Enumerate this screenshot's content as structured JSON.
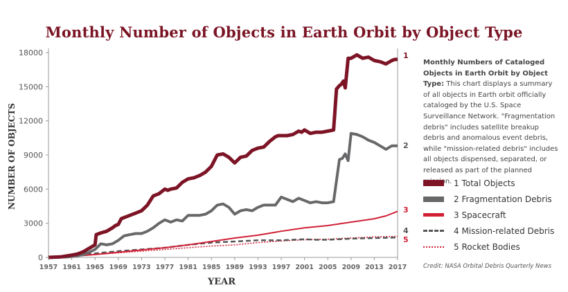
{
  "chart_data": {
    "type": "line",
    "title": "Monthly Number of Objects in Earth Orbit by Object Type",
    "xlabel": "YEAR",
    "ylabel": "NUMBER OF OBJECTS",
    "xlim": [
      1957,
      2017
    ],
    "ylim": [
      0,
      18000
    ],
    "x_ticks": [
      "1957",
      "1961",
      "1965",
      "1969",
      "1973",
      "1977",
      "1981",
      "1985",
      "1989",
      "1993",
      "1997",
      "2001",
      "2005",
      "2009",
      "2013",
      "2017"
    ],
    "y_ticks": [
      "0",
      "3000",
      "6000",
      "9000",
      "12000",
      "15000",
      "18000"
    ],
    "grid": false,
    "series": [
      {
        "name": "1 Total Objects",
        "end_label": "1",
        "color": "#7d1426",
        "dash": "solid",
        "x": [
          1957,
          1959,
          1961,
          1962,
          1963,
          1964,
          1965,
          1965.2,
          1966,
          1967,
          1968,
          1968.5,
          1969,
          1969.5,
          1970,
          1971,
          1972,
          1973,
          1974,
          1975,
          1976,
          1977,
          1977.5,
          1978,
          1979,
          1980,
          1981,
          1982,
          1983,
          1984,
          1985,
          1986,
          1987,
          1988,
          1989,
          1990,
          1991,
          1992,
          1993,
          1994,
          1995,
          1996,
          1996.5,
          1997,
          1998,
          1999,
          2000,
          2000.5,
          2001,
          2002,
          2003,
          2004,
          2005,
          2006,
          2006.5,
          2007,
          2007.3,
          2007.7,
          2008,
          2008.5,
          2009,
          2010,
          2011,
          2012,
          2013,
          2014,
          2015,
          2016,
          2016.5,
          2017
        ],
        "y": [
          0,
          40,
          200,
          300,
          500,
          800,
          1100,
          2000,
          2150,
          2300,
          2600,
          2800,
          2900,
          3400,
          3500,
          3700,
          3900,
          4100,
          4600,
          5400,
          5600,
          6000,
          5900,
          6000,
          6100,
          6600,
          6900,
          7000,
          7200,
          7500,
          8000,
          9000,
          9100,
          8800,
          8300,
          8800,
          8900,
          9400,
          9600,
          9700,
          10200,
          10600,
          10700,
          10700,
          10700,
          10800,
          11100,
          11000,
          11200,
          10900,
          11000,
          11000,
          11100,
          11200,
          14800,
          15100,
          15200,
          15500,
          14900,
          17500,
          17500,
          17800,
          17500,
          17600,
          17300,
          17200,
          17000,
          17300,
          17400,
          17400
        ]
      },
      {
        "name": "2 Fragmentation Debris",
        "end_label": "2",
        "color": "#68686a",
        "dash": "solid",
        "x": [
          1957,
          1960,
          1961,
          1962,
          1963,
          1964,
          1965,
          1966,
          1967,
          1968,
          1969,
          1970,
          1971,
          1972,
          1973,
          1974,
          1975,
          1976,
          1977,
          1978,
          1979,
          1980,
          1981,
          1982,
          1983,
          1984,
          1985,
          1986,
          1987,
          1988,
          1989,
          1990,
          1991,
          1992,
          1993,
          1994,
          1995,
          1996,
          1997,
          1998,
          1999,
          2000,
          2001,
          2002,
          2003,
          2004,
          2005,
          2006,
          2007,
          2007.5,
          2008,
          2008.5,
          2009,
          2010,
          2011,
          2012,
          2013,
          2014,
          2015,
          2016,
          2017
        ],
        "y": [
          0,
          30,
          80,
          150,
          250,
          450,
          700,
          1200,
          1100,
          1200,
          1500,
          1900,
          2000,
          2100,
          2100,
          2300,
          2600,
          3000,
          3300,
          3100,
          3300,
          3200,
          3700,
          3700,
          3700,
          3800,
          4100,
          4600,
          4700,
          4400,
          3800,
          4100,
          4200,
          4100,
          4400,
          4600,
          4600,
          4600,
          5300,
          5100,
          4900,
          5200,
          5000,
          4800,
          4900,
          4800,
          4800,
          4900,
          8600,
          8700,
          9100,
          8500,
          10900,
          10800,
          10600,
          10300,
          10100,
          9800,
          9500,
          9800,
          9800
        ]
      },
      {
        "name": "3 Spacecraft",
        "end_label": "3",
        "color": "#d11f36",
        "dash": "solid",
        "x": [
          1957,
          1961,
          1965,
          1969,
          1973,
          1977,
          1981,
          1985,
          1989,
          1993,
          1997,
          2001,
          2005,
          2009,
          2013,
          2015,
          2017
        ],
        "y": [
          0,
          100,
          250,
          450,
          650,
          850,
          1100,
          1400,
          1700,
          1950,
          2300,
          2600,
          2800,
          3100,
          3400,
          3650,
          4050
        ]
      },
      {
        "name": "4 Mission-related Debris",
        "end_label": "4",
        "color": "#555555",
        "dash": "dashed",
        "x": [
          1957,
          1961,
          1965,
          1969,
          1973,
          1977,
          1981,
          1985,
          1989,
          1993,
          1997,
          2001,
          2003,
          2005,
          2007,
          2009,
          2013,
          2017
        ],
        "y": [
          0,
          150,
          350,
          550,
          700,
          850,
          1100,
          1300,
          1400,
          1500,
          1500,
          1600,
          1550,
          1550,
          1600,
          1650,
          1700,
          1750
        ]
      },
      {
        "name": "5 Rocket Bodies",
        "end_label": "5",
        "color": "#d11f36",
        "dash": "dotted",
        "x": [
          1957,
          1961,
          1965,
          1969,
          1973,
          1977,
          1981,
          1985,
          1989,
          1993,
          1997,
          2001,
          2005,
          2009,
          2013,
          2017
        ],
        "y": [
          0,
          100,
          250,
          400,
          550,
          700,
          850,
          1000,
          1100,
          1300,
          1450,
          1550,
          1600,
          1700,
          1800,
          1850
        ]
      }
    ]
  },
  "description": {
    "heading": "Monthly Numbers of Cataloged Objects in Earth Orbit by Object Type:",
    "body": " This chart displays a summary of all objects in Earth orbit officially cataloged by the U.S. Space Surveillance Network. \"Fragmentation debris\" includes satellite breakup debris and anomalous event debris, while \"mission-related debris\" includes all objects dispensed, separated, or released as part of the planned mission."
  },
  "legend": [
    {
      "label": "1 Total Objects",
      "color": "#7d1426",
      "style": "solid"
    },
    {
      "label": "2 Fragmentation Debris",
      "color": "#68686a",
      "style": "solid"
    },
    {
      "label": "3 Spacecraft",
      "color": "#d11f36",
      "style": "solid"
    },
    {
      "label": "4 Mission-related Debris",
      "color": "#555555",
      "style": "dashed"
    },
    {
      "label": "5 Rocket Bodies",
      "color": "#d11f36",
      "style": "dotted"
    }
  ],
  "credit": "Credit: NASA Orbital Debris Quarterly News"
}
